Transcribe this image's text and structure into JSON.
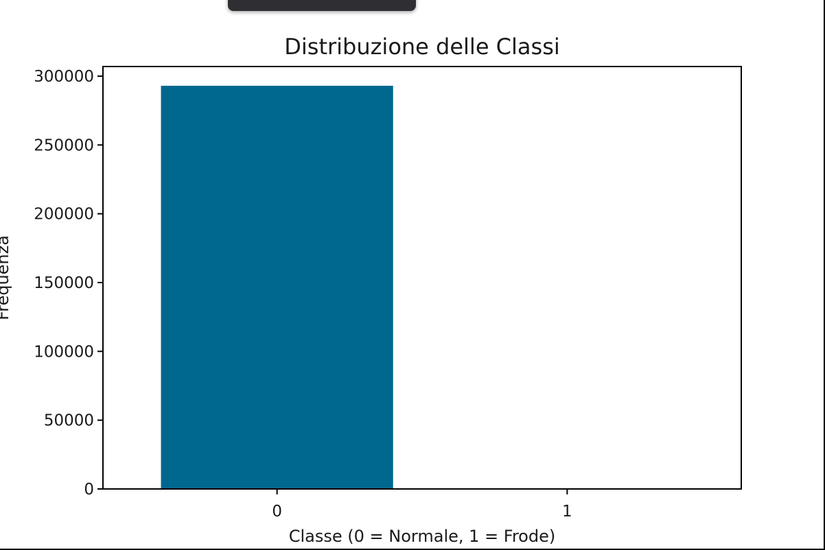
{
  "chart_data": {
    "type": "bar",
    "title": "Distribuzione delle Classi",
    "xlabel": "Classe (0 = Normale, 1 = Frode)",
    "ylabel": "Frequenza",
    "categories": [
      "0",
      "1"
    ],
    "values": [
      293000,
      500
    ],
    "ylim": [
      0,
      307000
    ],
    "yticks": [
      0,
      50000,
      100000,
      150000,
      200000,
      250000,
      300000
    ],
    "bar_color": "#00678f",
    "grid": false,
    "legend": "none"
  }
}
